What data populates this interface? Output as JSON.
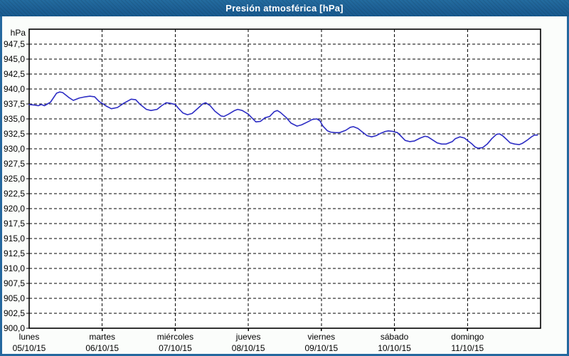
{
  "window": {
    "title": "Presión atmosférica [hPa]"
  },
  "chart_data": {
    "type": "line",
    "title": "Presión atmosférica [hPa]",
    "unit_label": "hPa",
    "ylim": [
      900,
      950
    ],
    "ytick_step": 2.5,
    "ytick_labels": [
      "947,5",
      "945,0",
      "942,5",
      "940,0",
      "937,5",
      "935,0",
      "932,5",
      "930,0",
      "927,5",
      "925,0",
      "922,5",
      "920,0",
      "917,5",
      "915,0",
      "912,5",
      "910,0",
      "907,5",
      "905,0",
      "902,5",
      "900,0"
    ],
    "grid": "dashed",
    "legend": "none",
    "hours_total": 168,
    "days": [
      {
        "name": "lunes",
        "date": "05/10/15"
      },
      {
        "name": "martes",
        "date": "06/10/15"
      },
      {
        "name": "miércoles",
        "date": "07/10/15"
      },
      {
        "name": "jueves",
        "date": "08/10/15"
      },
      {
        "name": "viernes",
        "date": "09/10/15"
      },
      {
        "name": "sábado",
        "date": "10/10/15"
      },
      {
        "name": "domingo",
        "date": "11/10/15"
      }
    ],
    "colors": {
      "line": "#2d2dc4",
      "grid": "#000000",
      "plot_bg": "#ffffff",
      "frame": "#25689e",
      "titlebar": "#1d6095"
    },
    "series": [
      {
        "name": "Presión atmosférica",
        "x_unit": "hours_since_monday_00h",
        "y_unit": "hPa",
        "points": [
          [
            0,
            937.4
          ],
          [
            2,
            937.3
          ],
          [
            3,
            937.2
          ],
          [
            4,
            937.4
          ],
          [
            5,
            937.2
          ],
          [
            7,
            937.8
          ],
          [
            9,
            939.3
          ],
          [
            10,
            939.5
          ],
          [
            11,
            939.4
          ],
          [
            13,
            938.6
          ],
          [
            14.5,
            938.1
          ],
          [
            16.5,
            938.5
          ],
          [
            18.5,
            938.7
          ],
          [
            20,
            938.8
          ],
          [
            21.5,
            938.7
          ],
          [
            23,
            937.9
          ],
          [
            24,
            937.6
          ],
          [
            25.5,
            937.1
          ],
          [
            27,
            936.7
          ],
          [
            29,
            936.9
          ],
          [
            31,
            937.6
          ],
          [
            33.5,
            938.3
          ],
          [
            35,
            938.2
          ],
          [
            36.5,
            937.4
          ],
          [
            38.5,
            936.6
          ],
          [
            40,
            936.4
          ],
          [
            42,
            936.6
          ],
          [
            43.5,
            937.2
          ],
          [
            45,
            937.7
          ],
          [
            46.5,
            937.6
          ],
          [
            48,
            937.4
          ],
          [
            49,
            936.8
          ],
          [
            50.5,
            936.0
          ],
          [
            52,
            935.7
          ],
          [
            53.5,
            935.9
          ],
          [
            55.5,
            936.8
          ],
          [
            57,
            937.5
          ],
          [
            58,
            937.7
          ],
          [
            59.5,
            937.2
          ],
          [
            61,
            936.3
          ],
          [
            63,
            935.5
          ],
          [
            64,
            935.4
          ],
          [
            65.5,
            935.8
          ],
          [
            67.5,
            936.4
          ],
          [
            68.5,
            936.6
          ],
          [
            70,
            936.4
          ],
          [
            72,
            935.8
          ],
          [
            73.5,
            935.0
          ],
          [
            74.5,
            934.5
          ],
          [
            76,
            934.6
          ],
          [
            77.5,
            935.2
          ],
          [
            79,
            935.4
          ],
          [
            80.5,
            936.2
          ],
          [
            81.5,
            936.4
          ],
          [
            82.5,
            936.1
          ],
          [
            84.5,
            935.2
          ],
          [
            86,
            934.3
          ],
          [
            88,
            933.8
          ],
          [
            89.5,
            934.0
          ],
          [
            91.5,
            934.5
          ],
          [
            93,
            934.9
          ],
          [
            94.5,
            935.0
          ],
          [
            95.5,
            934.7
          ],
          [
            96.5,
            933.8
          ],
          [
            98,
            933.0
          ],
          [
            99,
            932.8
          ],
          [
            100.5,
            932.7
          ],
          [
            102,
            932.7
          ],
          [
            104,
            933.1
          ],
          [
            105.5,
            933.6
          ],
          [
            106.5,
            933.7
          ],
          [
            108,
            933.4
          ],
          [
            109.5,
            932.8
          ],
          [
            111,
            932.2
          ],
          [
            112.5,
            932.0
          ],
          [
            114,
            932.2
          ],
          [
            115.5,
            932.6
          ],
          [
            117,
            932.9
          ],
          [
            118,
            933.0
          ],
          [
            119.5,
            932.9
          ],
          [
            121,
            932.7
          ],
          [
            122,
            932.2
          ],
          [
            123.5,
            931.4
          ],
          [
            125,
            931.2
          ],
          [
            126.5,
            931.3
          ],
          [
            128.5,
            931.8
          ],
          [
            130,
            932.1
          ],
          [
            131,
            932.0
          ],
          [
            132.5,
            931.5
          ],
          [
            134,
            931.0
          ],
          [
            135.5,
            930.8
          ],
          [
            137,
            930.8
          ],
          [
            139,
            931.2
          ],
          [
            140,
            931.7
          ],
          [
            141.5,
            932.0
          ],
          [
            143,
            931.8
          ],
          [
            144,
            931.4
          ],
          [
            145.5,
            930.8
          ],
          [
            146.5,
            930.3
          ],
          [
            147.5,
            930.1
          ],
          [
            149,
            930.2
          ],
          [
            150.5,
            930.8
          ],
          [
            152,
            931.7
          ],
          [
            153.5,
            932.4
          ],
          [
            154.5,
            932.5
          ],
          [
            155.5,
            932.2
          ],
          [
            157,
            931.5
          ],
          [
            158,
            931.0
          ],
          [
            159.5,
            930.8
          ],
          [
            161,
            930.7
          ],
          [
            162,
            930.9
          ],
          [
            163.5,
            931.4
          ],
          [
            165,
            932.0
          ],
          [
            166,
            932.3
          ],
          [
            167,
            932.3
          ]
        ]
      }
    ]
  }
}
